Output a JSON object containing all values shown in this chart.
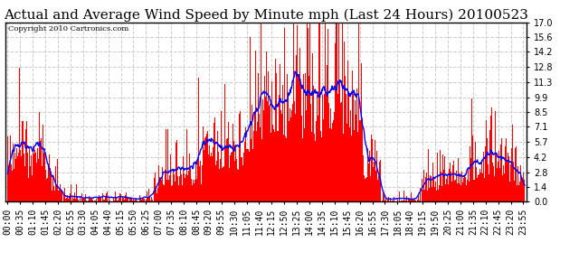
{
  "title": "Actual and Average Wind Speed by Minute mph (Last 24 Hours) 20100523",
  "copyright": "Copyright 2010 Cartronics.com",
  "yticks": [
    0.0,
    1.4,
    2.8,
    4.2,
    5.7,
    7.1,
    8.5,
    9.9,
    11.3,
    12.8,
    14.2,
    15.6,
    17.0
  ],
  "ylim": [
    0.0,
    17.0
  ],
  "bar_color": "#FF0000",
  "line_color": "#0000FF",
  "background_color": "#FFFFFF",
  "grid_color": "#CCCCCC",
  "title_fontsize": 11,
  "tick_fontsize": 7,
  "xtick_interval_minutes": 35,
  "avg_window": 30
}
